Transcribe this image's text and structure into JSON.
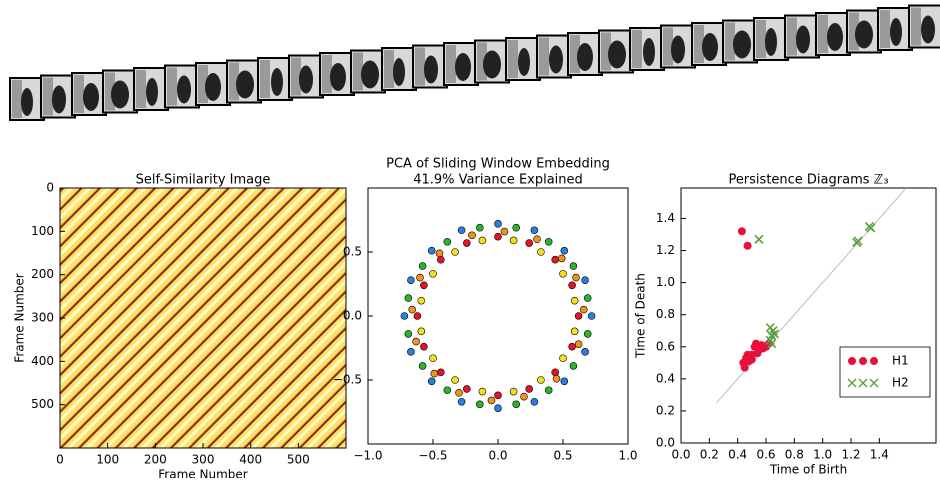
{
  "chart_data": [
    {
      "type": "heatmap",
      "title": "Self-Similarity Image",
      "xlabel": "Frame Number",
      "ylabel": "Frame Number",
      "xlim": [
        0,
        600
      ],
      "ylim": [
        600,
        0
      ],
      "xticks": [
        0,
        100,
        200,
        300,
        400,
        500
      ],
      "yticks": [
        0,
        100,
        200,
        300,
        400,
        500
      ]
    },
    {
      "type": "scatter",
      "title": "PCA of Sliding Window Embedding",
      "subtitle": "41.9% Variance Explained",
      "xlim": [
        -1,
        1
      ],
      "ylim": [
        -1,
        1
      ],
      "xticks": [
        {
          "value": -1,
          "label": "−1.0"
        },
        {
          "value": -0.5,
          "label": "−0.5"
        },
        {
          "value": 0,
          "label": "0.0"
        },
        {
          "value": 0.5,
          "label": "0.5"
        },
        {
          "value": 1,
          "label": "1.0"
        }
      ],
      "yticks": [
        {
          "value": -0.5,
          "label": "−0.5"
        },
        {
          "value": 0,
          "label": "0.0"
        },
        {
          "value": 0.5,
          "label": "0.5"
        }
      ],
      "series": [
        {
          "color": "#e8102a",
          "x": [
            0.62,
            0.57,
            0.44,
            0.24,
            0,
            -0.24,
            -0.44,
            -0.57,
            -0.62,
            -0.57,
            -0.44,
            -0.24,
            0,
            0.24,
            0.44,
            0.57
          ],
          "y": [
            0,
            0.24,
            0.44,
            0.57,
            0.62,
            0.57,
            0.44,
            0.24,
            0,
            -0.24,
            -0.44,
            -0.57,
            -0.62,
            -0.57,
            -0.44,
            -0.24
          ]
        },
        {
          "color": "#2ab52a",
          "x": [
            0.69,
            0.58,
            0.39,
            0.14,
            -0.14,
            -0.39,
            -0.58,
            -0.69,
            -0.69,
            -0.58,
            -0.39,
            -0.14,
            0.14,
            0.39,
            0.58,
            0.69
          ],
          "y": [
            0.14,
            0.39,
            0.58,
            0.69,
            0.69,
            0.58,
            0.39,
            0.14,
            -0.14,
            -0.39,
            -0.58,
            -0.69,
            -0.69,
            -0.58,
            -0.39,
            -0.14
          ]
        },
        {
          "color": "#2a7fe0",
          "x": [
            0.72,
            0.67,
            0.51,
            0.28,
            0,
            -0.28,
            -0.51,
            -0.67,
            -0.72,
            -0.67,
            -0.51,
            -0.28,
            0,
            0.28,
            0.51,
            0.67
          ],
          "y": [
            0,
            0.28,
            0.51,
            0.67,
            0.72,
            0.67,
            0.51,
            0.28,
            0,
            -0.28,
            -0.51,
            -0.67,
            -0.72,
            -0.67,
            -0.51,
            -0.28
          ]
        },
        {
          "color": "#f2e020",
          "x": [
            0.59,
            0.5,
            0.33,
            0.12,
            -0.12,
            -0.33,
            -0.5,
            -0.59,
            -0.59,
            -0.5,
            -0.33,
            -0.12,
            0.12,
            0.33,
            0.5,
            0.59
          ],
          "y": [
            0.12,
            0.33,
            0.5,
            0.59,
            0.59,
            0.5,
            0.33,
            0.12,
            -0.12,
            -0.33,
            -0.5,
            -0.59,
            -0.59,
            -0.5,
            -0.33,
            -0.12
          ]
        },
        {
          "color": "#f0921e",
          "x": [
            0.66,
            0.6,
            0.49,
            0.3,
            0.05,
            -0.2,
            -0.45,
            -0.6,
            -0.66,
            -0.63,
            -0.49,
            -0.3,
            -0.05,
            0.2,
            0.45,
            0.62
          ],
          "y": [
            0.05,
            0.3,
            0.45,
            0.6,
            0.66,
            0.63,
            0.49,
            0.3,
            0.05,
            -0.2,
            -0.45,
            -0.6,
            -0.66,
            -0.63,
            -0.49,
            -0.22
          ]
        }
      ]
    },
    {
      "type": "scatter",
      "title": "Persistence Diagrams ℤ₃",
      "xlabel": "Time of Birth",
      "ylabel": "Time of Death",
      "xlim": [
        0,
        1.8
      ],
      "ylim": [
        0,
        1.59
      ],
      "xticks": [
        {
          "value": 0,
          "label": "0.0"
        },
        0.2,
        0.4,
        0.6,
        0.8,
        {
          "value": 1,
          "label": "1.0"
        },
        1.2,
        1.4
      ],
      "yticks": [
        {
          "value": 0,
          "label": "0.0"
        },
        0.2,
        0.4,
        0.6,
        0.8,
        {
          "value": 1,
          "label": "1.0"
        },
        1.2,
        1.4
      ],
      "diagonal": [
        0.25,
        1.58
      ],
      "legend": "lower right",
      "series": [
        {
          "name": "H1",
          "marker": "o",
          "color": "#e8103a",
          "x": [
            0.43,
            0.47,
            0.44,
            0.46,
            0.48,
            0.5,
            0.52,
            0.55,
            0.57,
            0.6,
            0.62,
            0.45,
            0.5,
            0.54,
            0.58,
            0.47,
            0.53
          ],
          "y": [
            1.32,
            1.23,
            0.5,
            0.53,
            0.51,
            0.55,
            0.6,
            0.58,
            0.61,
            0.6,
            0.62,
            0.47,
            0.52,
            0.56,
            0.59,
            0.55,
            0.62
          ]
        },
        {
          "name": "H2",
          "marker": "x",
          "color": "#5a9e3a",
          "x": [
            0.55,
            1.25,
            1.24,
            1.33,
            1.34,
            0.63,
            0.64,
            0.65,
            0.63,
            0.66,
            0.64
          ],
          "y": [
            1.27,
            1.26,
            1.25,
            1.35,
            1.34,
            0.64,
            0.67,
            0.7,
            0.72,
            0.68,
            0.62
          ]
        }
      ]
    }
  ]
}
